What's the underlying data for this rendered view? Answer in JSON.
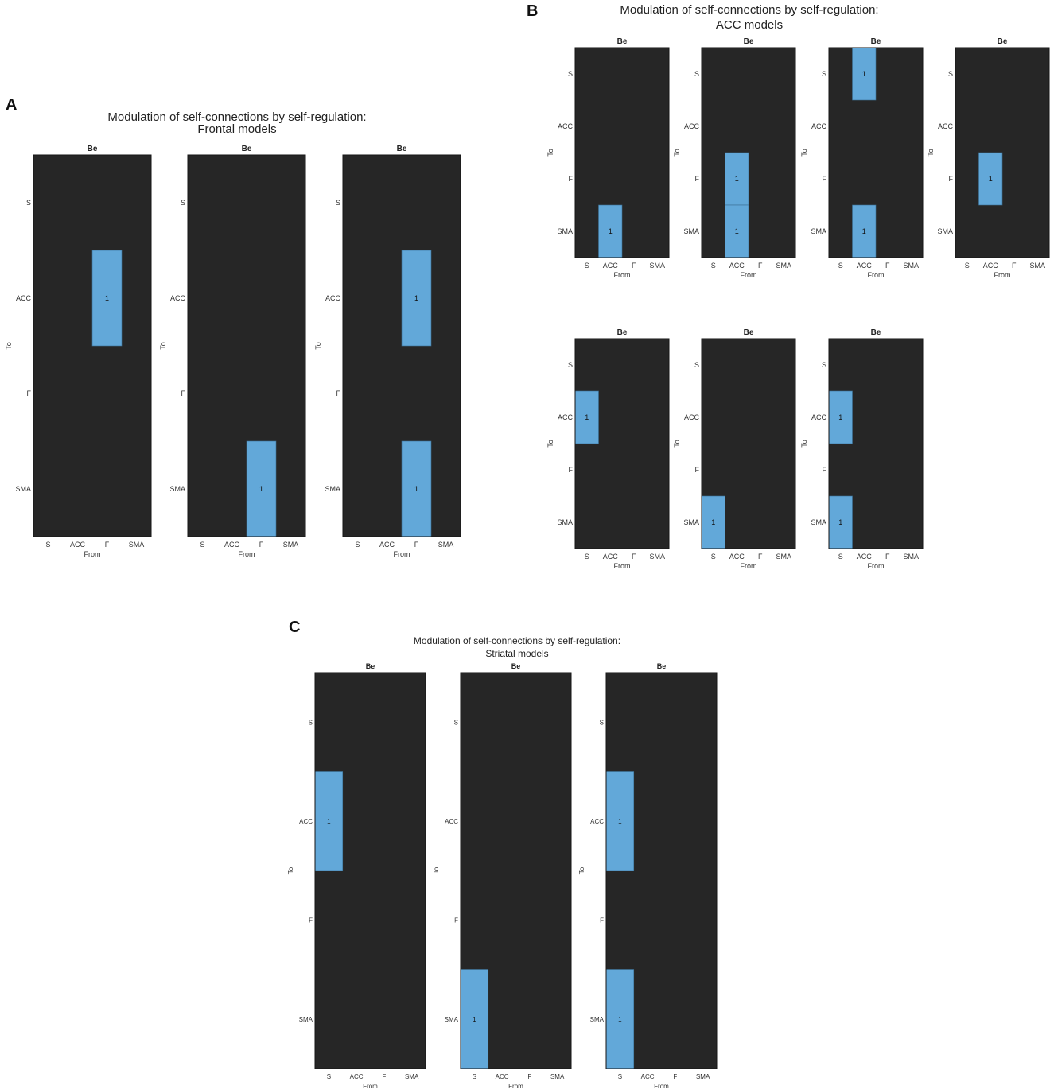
{
  "figure": {
    "panel_labels": [
      "A",
      "B",
      "C"
    ],
    "titles": [
      [
        "Modulation of self-connections by self-regulation:",
        "Frontal models"
      ],
      [
        "Modulation of self-connections by self-regulation:",
        "ACC models"
      ],
      [
        "Modulation of self-connections by self-regulation:",
        "Striatal models"
      ]
    ],
    "colors": {
      "background": "#262626",
      "cell": "#62a8d9",
      "frame": "#151515"
    }
  },
  "chart_data": [
    {
      "type": "heatmap",
      "panel": "A",
      "subplot_title": "Be",
      "xlabel": "From",
      "ylabel": "To",
      "x_labels": [
        "S",
        "ACC",
        "F",
        "SMA"
      ],
      "y_labels": [
        "S",
        "ACC",
        "F",
        "SMA"
      ],
      "matrices": [
        [
          [
            0,
            0,
            0,
            0
          ],
          [
            0,
            0,
            1,
            0
          ],
          [
            0,
            0,
            0,
            0
          ],
          [
            0,
            0,
            0,
            0
          ]
        ],
        [
          [
            0,
            0,
            0,
            0
          ],
          [
            0,
            0,
            0,
            0
          ],
          [
            0,
            0,
            0,
            0
          ],
          [
            0,
            0,
            1,
            0
          ]
        ],
        [
          [
            0,
            0,
            0,
            0
          ],
          [
            0,
            0,
            1,
            0
          ],
          [
            0,
            0,
            0,
            0
          ],
          [
            0,
            0,
            1,
            0
          ]
        ]
      ]
    },
    {
      "type": "heatmap",
      "panel": "B",
      "subplot_title": "Be",
      "xlabel": "From",
      "ylabel": "To",
      "x_labels": [
        "S",
        "ACC",
        "F",
        "SMA"
      ],
      "y_labels": [
        "S",
        "ACC",
        "F",
        "SMA"
      ],
      "matrices": [
        [
          [
            0,
            0,
            0,
            0
          ],
          [
            0,
            0,
            0,
            0
          ],
          [
            0,
            0,
            0,
            0
          ],
          [
            0,
            1,
            0,
            0
          ]
        ],
        [
          [
            0,
            0,
            0,
            0
          ],
          [
            0,
            0,
            0,
            0
          ],
          [
            0,
            1,
            0,
            0
          ],
          [
            0,
            1,
            0,
            0
          ]
        ],
        [
          [
            0,
            1,
            0,
            0
          ],
          [
            0,
            0,
            0,
            0
          ],
          [
            0,
            0,
            0,
            0
          ],
          [
            0,
            1,
            0,
            0
          ]
        ],
        [
          [
            0,
            0,
            0,
            0
          ],
          [
            0,
            0,
            0,
            0
          ],
          [
            0,
            1,
            0,
            0
          ],
          [
            0,
            0,
            0,
            0
          ]
        ],
        [
          [
            0,
            0,
            0,
            0
          ],
          [
            1,
            0,
            0,
            0
          ],
          [
            0,
            0,
            0,
            0
          ],
          [
            0,
            0,
            0,
            0
          ]
        ],
        [
          [
            0,
            0,
            0,
            0
          ],
          [
            0,
            0,
            0,
            0
          ],
          [
            0,
            0,
            0,
            0
          ],
          [
            1,
            0,
            0,
            0
          ]
        ],
        [
          [
            0,
            0,
            0,
            0
          ],
          [
            1,
            0,
            0,
            0
          ],
          [
            0,
            0,
            0,
            0
          ],
          [
            1,
            0,
            0,
            0
          ]
        ]
      ]
    },
    {
      "type": "heatmap",
      "panel": "C",
      "subplot_title": "Be",
      "xlabel": "From",
      "ylabel": "To",
      "x_labels": [
        "S",
        "ACC",
        "F",
        "SMA"
      ],
      "y_labels": [
        "S",
        "ACC",
        "F",
        "SMA"
      ],
      "matrices": [
        [
          [
            0,
            0,
            0,
            0
          ],
          [
            1,
            0,
            0,
            0
          ],
          [
            0,
            0,
            0,
            0
          ],
          [
            0,
            0,
            0,
            0
          ]
        ],
        [
          [
            0,
            0,
            0,
            0
          ],
          [
            0,
            0,
            0,
            0
          ],
          [
            0,
            0,
            0,
            0
          ],
          [
            1,
            0,
            0,
            0
          ]
        ],
        [
          [
            0,
            0,
            0,
            0
          ],
          [
            1,
            0,
            0,
            0
          ],
          [
            0,
            0,
            0,
            0
          ],
          [
            1,
            0,
            0,
            0
          ]
        ]
      ]
    }
  ]
}
